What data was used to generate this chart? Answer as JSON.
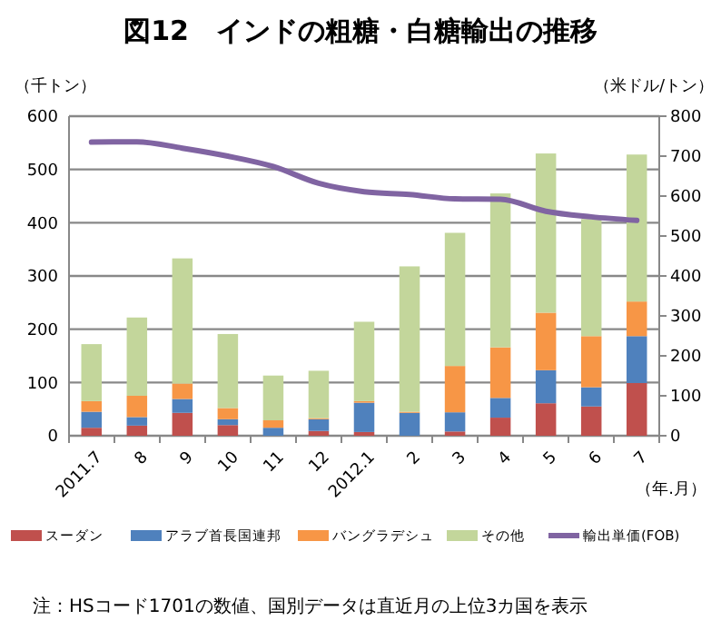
{
  "chart_data": {
    "type": "bar",
    "title": "図12　インドの粗糖・白糖輸出の推移",
    "ylabel": "（千トン）",
    "y2label": "（米ドル/トン）",
    "xlabel": "（年.月）",
    "categories": [
      "2011.7",
      "8",
      "9",
      "10",
      "11",
      "12",
      "2012.1",
      "2",
      "3",
      "4",
      "5",
      "6",
      "7"
    ],
    "stacked": true,
    "series": [
      {
        "name": "スーダン",
        "color": "#c0504d",
        "values": [
          15,
          19,
          43,
          20,
          null,
          9,
          7,
          null,
          8,
          34,
          61,
          55,
          99
        ]
      },
      {
        "name": "アラブ首長国連邦",
        "color": "#4f81bd",
        "values": [
          30,
          16,
          26,
          11,
          15,
          22,
          55,
          43,
          36,
          37,
          62,
          36,
          88
        ]
      },
      {
        "name": "バングラデシュ",
        "color": "#f79646",
        "values": [
          20,
          40,
          29,
          21,
          14,
          2,
          3,
          2,
          87,
          95,
          108,
          96,
          65
        ]
      },
      {
        "name": "その他",
        "color": "#c3d69b",
        "values": [
          107,
          147,
          235,
          139,
          84,
          89,
          149,
          273,
          250,
          289,
          299,
          220,
          276
        ]
      },
      {
        "name": "輸出単価(FOB)",
        "type": "line",
        "axis": "y2",
        "color": "#8064a2",
        "values": [
          735,
          736,
          720,
          700,
          674,
          632,
          611,
          604,
          593,
          592,
          562,
          548,
          539
        ]
      }
    ],
    "ylim": [
      0,
      600
    ],
    "yticks": [
      0,
      100,
      200,
      300,
      400,
      500,
      600
    ],
    "y2lim": [
      0,
      800
    ],
    "y2ticks": [
      0,
      100,
      200,
      300,
      400,
      500,
      600,
      700,
      800
    ],
    "grid": "y",
    "legend": "bottom",
    "annotations": [
      "注：HSコード1701の数値、国別データは直近月の上位3カ国を表示"
    ]
  }
}
